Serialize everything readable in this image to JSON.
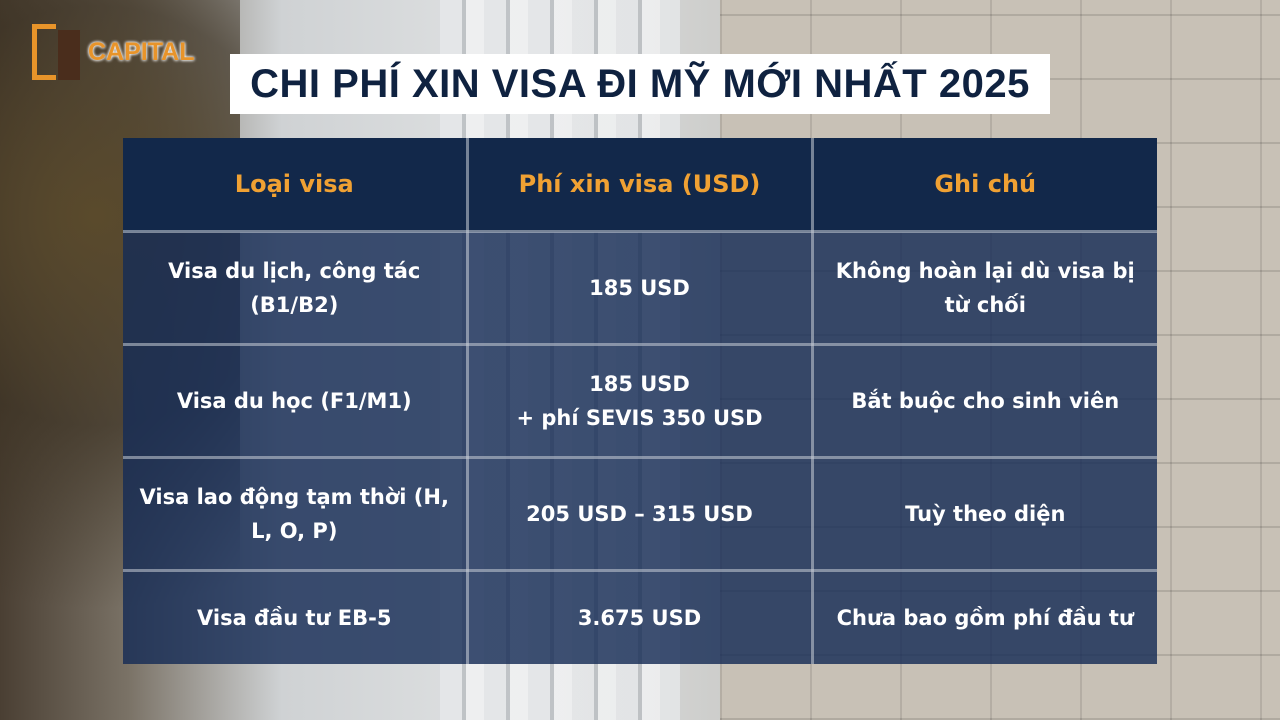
{
  "brand": {
    "logo_text": "CAPITAL",
    "logo_mark": "GR",
    "accent": "#e8942a"
  },
  "title": "CHI PHÍ XIN VISA ĐI MỸ MỚI NHẤT 2025",
  "table": {
    "headers": [
      "Loại visa",
      "Phí xin visa (USD)",
      "Ghi chú"
    ],
    "rows": [
      [
        "Visa du lịch, công tác (B1/B2)",
        "185 USD",
        "Không hoàn lại dù visa bị từ chối"
      ],
      [
        "Visa du học (F1/M1)",
        "185 USD\n+ phí SEVIS 350 USD",
        "Bắt buộc cho sinh viên"
      ],
      [
        "Visa lao động tạm thời (H, L, O, P)",
        "205 USD – 315 USD",
        "Tuỳ theo diện"
      ],
      [
        "Visa đầu tư EB-5",
        "3.675 USD",
        "Chưa bao gồm phí đầu tư"
      ]
    ]
  },
  "colors": {
    "header_bg": "#12284a",
    "header_text": "#f0a133",
    "title_text": "#0f2240"
  }
}
